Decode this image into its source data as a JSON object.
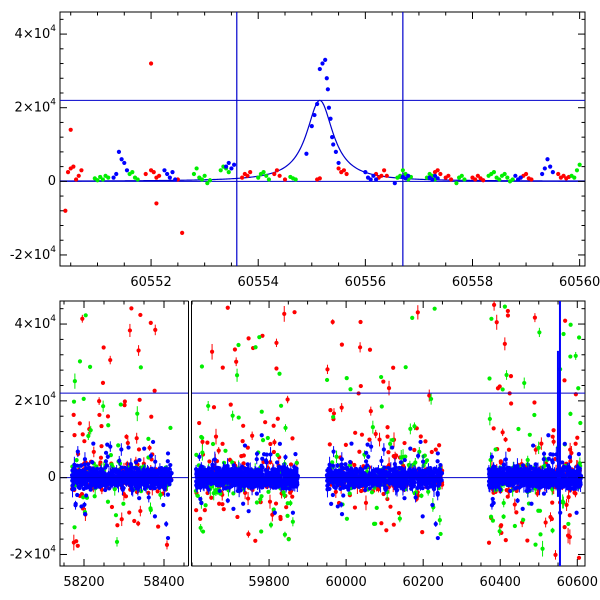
{
  "colors": {
    "red": "#ff0000",
    "green": "#00ee00",
    "blue": "#0000ff",
    "line": "#0000cc"
  },
  "chart_data": [
    {
      "type": "scatter",
      "panel": "top-zoom",
      "xlabel": "",
      "ylabel": "",
      "xlim": [
        60550.3,
        60560.1
      ],
      "ylim": [
        -23000,
        46000
      ],
      "xticks": [
        60552,
        60554,
        60556,
        60558,
        60560
      ],
      "yticks": [
        -20000,
        0,
        20000,
        40000
      ],
      "ytick_labels": [
        "-2×10⁴",
        "0",
        "2×10⁴",
        "4×10⁴"
      ],
      "grid": false,
      "hlines": [
        0,
        22000
      ],
      "vlines": [
        60553.6,
        60556.7
      ],
      "model_curve": {
        "baseline": 0,
        "peak": 22000,
        "center": 60555.15,
        "width": 0.3
      },
      "series": [
        {
          "color": "red",
          "x": [
            60550.45,
            60550.5,
            60550.55,
            60550.6,
            60550.65,
            60550.7,
            60551.9,
            60552.0,
            60552.05,
            60552.1,
            60552.15,
            60552.5,
            60553.7,
            60553.75,
            60553.8,
            60553.85,
            60554.3,
            60554.35,
            60554.4,
            60554.5,
            60555.1,
            60555.15,
            60555.5,
            60555.55,
            60555.6,
            60555.65,
            60556.2,
            60556.25,
            60556.3,
            60556.35,
            60556.4,
            60557.3,
            60557.35,
            60557.4,
            60557.5,
            60557.55,
            60557.6,
            60558.0,
            60558.05,
            60558.1,
            60558.15,
            60558.2,
            60558.9,
            60558.95,
            60559.0,
            60559.05,
            60559.1,
            60559.6,
            60559.65,
            60559.7,
            60559.75,
            60559.8,
            60550.4,
            60550.5,
            60552.0,
            60552.1,
            60552.58
          ],
          "y": [
            2500,
            3500,
            4000,
            500,
            1500,
            3000,
            2000,
            3000,
            2500,
            1000,
            1500,
            500,
            1000,
            2000,
            1500,
            2500,
            2000,
            3000,
            1500,
            500,
            500,
            800,
            3500,
            2500,
            3000,
            2000,
            2000,
            1000,
            1500,
            3000,
            1500,
            2500,
            3000,
            2000,
            1000,
            1500,
            500,
            1000,
            500,
            1500,
            800,
            300,
            1000,
            1500,
            2000,
            800,
            500,
            2000,
            1000,
            1500,
            800,
            1200,
            -8000,
            14000,
            32000,
            -6000,
            -14000
          ]
        },
        {
          "color": "green",
          "x": [
            60550.95,
            60551.0,
            60551.05,
            60551.1,
            60551.15,
            60551.2,
            60551.6,
            60551.65,
            60551.7,
            60551.75,
            60552.8,
            60552.85,
            60552.9,
            60552.95,
            60553.0,
            60553.05,
            60553.1,
            60553.3,
            60553.35,
            60553.4,
            60553.45,
            60554.0,
            60554.05,
            60554.1,
            60554.15,
            60554.2,
            60554.6,
            60554.65,
            60554.7,
            60556.6,
            60556.65,
            60556.7,
            60556.75,
            60556.8,
            60556.85,
            60557.15,
            60557.2,
            60557.25,
            60557.3,
            60557.7,
            60557.75,
            60557.8,
            60557.85,
            60558.3,
            60558.35,
            60558.4,
            60558.45,
            60558.5,
            60558.55,
            60558.6,
            60558.65,
            60558.7,
            60558.75,
            60559.85,
            60559.9,
            60559.95,
            60560.0
          ],
          "y": [
            800,
            300,
            1200,
            500,
            1500,
            1000,
            2000,
            2500,
            1000,
            500,
            2000,
            3500,
            1000,
            500,
            1500,
            -500,
            300,
            3000,
            4000,
            3500,
            2500,
            1000,
            2000,
            2500,
            1500,
            500,
            1200,
            800,
            500,
            1000,
            1500,
            3000,
            2000,
            500,
            1200,
            1000,
            2000,
            1500,
            500,
            -500,
            1000,
            1500,
            500,
            1500,
            2000,
            2500,
            1000,
            500,
            1500,
            2000,
            1000,
            0,
            500,
            1500,
            1000,
            3000,
            4500
          ]
        },
        {
          "color": "blue",
          "x": [
            60551.3,
            60551.35,
            60551.4,
            60551.45,
            60551.5,
            60551.55,
            60552.25,
            60552.3,
            60552.35,
            60552.4,
            60552.45,
            60553.4,
            60553.45,
            60553.5,
            60553.55,
            60554.9,
            60555.0,
            60555.05,
            60555.1,
            60555.15,
            60555.2,
            60555.25,
            60555.28,
            60555.3,
            60555.32,
            60555.35,
            60555.38,
            60555.4,
            60555.45,
            60555.5,
            60556.0,
            60556.05,
            60556.1,
            60556.15,
            60556.2,
            60556.7,
            60556.75,
            60556.8,
            60557.2,
            60557.25,
            60557.3,
            60557.35,
            60558.8,
            60558.85,
            60558.9,
            60559.3,
            60559.35,
            60559.4,
            60559.45,
            60559.5,
            60556.55
          ],
          "y": [
            1000,
            2000,
            8000,
            6000,
            5000,
            3000,
            3000,
            2000,
            1000,
            2500,
            500,
            4000,
            5000,
            3500,
            4500,
            7500,
            15000,
            18000,
            21000,
            30500,
            32000,
            33000,
            28000,
            25000,
            20000,
            17000,
            12000,
            10000,
            8000,
            5000,
            2500,
            1000,
            500,
            1500,
            500,
            1200,
            800,
            1500,
            1000,
            500,
            1500,
            800,
            1500,
            500,
            1000,
            2000,
            3500,
            6000,
            4000,
            2500,
            -500
          ]
        }
      ]
    },
    {
      "type": "scatter",
      "panel": "bottom-full",
      "xlabel": "",
      "ylabel": "",
      "broken_axis": true,
      "segments": [
        {
          "xlim": [
            58140,
            58460
          ],
          "xticks": [
            58200,
            58400
          ]
        },
        {
          "xlim": [
            59600,
            60620
          ],
          "xticks": [
            59800,
            60000,
            60200,
            60400,
            60600
          ]
        }
      ],
      "ylim": [
        -23000,
        46000
      ],
      "yticks": [
        -20000,
        0,
        20000,
        40000
      ],
      "ytick_labels": [
        "-2×10⁴",
        "0",
        "2×10⁴",
        "4×10⁴"
      ],
      "grid": false,
      "hlines": [
        0,
        22000
      ],
      "vlines": [
        60555
      ],
      "seasons": [
        [
          58170,
          58420
        ],
        [
          59610,
          59875
        ],
        [
          59950,
          60250
        ],
        [
          60370,
          60610
        ]
      ],
      "core_spread": [
        -6000,
        6000
      ],
      "outer_spread": [
        -22000,
        45000
      ],
      "points_per_season": {
        "blue": 700,
        "red": 160,
        "green": 110
      },
      "spike": {
        "x": 60555,
        "y_top": 33000,
        "y_bottom": -5000
      }
    }
  ]
}
